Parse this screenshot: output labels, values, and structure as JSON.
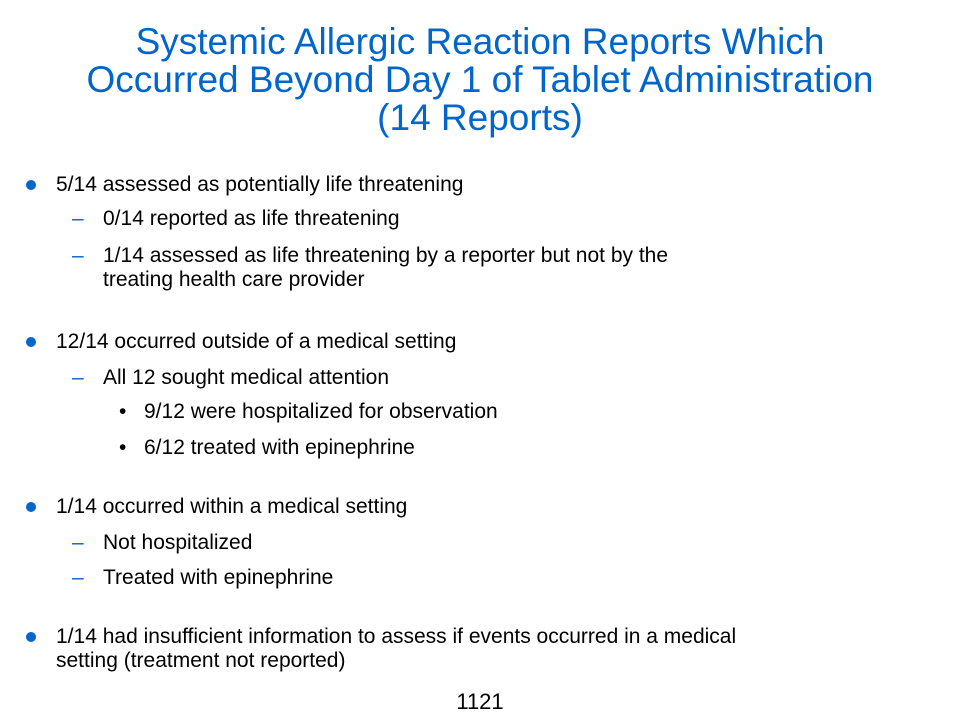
{
  "title": {
    "line1": "Systemic Allergic Reaction Reports Which",
    "line2": "Occurred Beyond Day 1 of Tablet Administration",
    "line3": "(14 Reports)"
  },
  "bullets": {
    "b1": {
      "text": "5/14 assessed as potentially life threatening",
      "sub1": "0/14 reported as life threatening",
      "sub2_line1": "1/14 assessed as life threatening by a reporter but not by the",
      "sub2_line2": "treating health care provider"
    },
    "b2": {
      "text": "12/14 occurred outside of a medical setting",
      "sub1": "All 12 sought medical attention",
      "sub1_item1": "9/12 were hospitalized for observation",
      "sub1_item2": "6/12 treated with epinephrine"
    },
    "b3": {
      "text": "1/14 occurred within a medical setting",
      "sub1": "Not hospitalized",
      "sub2": "Treated with epinephrine"
    },
    "b4": {
      "line1": "1/14 had insufficient information to assess if events occurred in a medical",
      "line2": "setting (treatment not reported)"
    }
  },
  "markers": {
    "dash": "–",
    "dot": "•"
  },
  "slide_number": "1121",
  "colors": {
    "title": "#0066cc",
    "bullet": "#0066cc",
    "text": "#000000"
  }
}
